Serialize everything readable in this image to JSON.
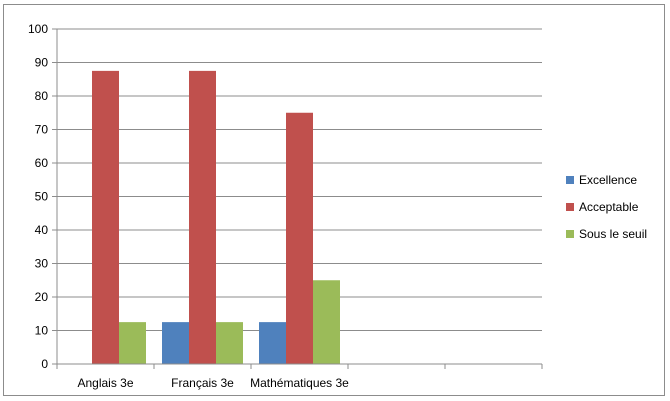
{
  "chart_data": {
    "type": "bar",
    "title": "",
    "xlabel": "",
    "ylabel": "",
    "categories": [
      "Anglais 3e",
      "Français 3e",
      "Mathématiques 3e",
      "",
      ""
    ],
    "series": [
      {
        "name": "Excellence",
        "values": [
          0,
          12.5,
          12.5,
          0,
          0
        ],
        "color": "#4F81BD"
      },
      {
        "name": "Acceptable",
        "values": [
          87.5,
          87.5,
          75,
          0,
          0
        ],
        "color": "#C0504D"
      },
      {
        "name": "Sous le seuil",
        "values": [
          12.5,
          12.5,
          25,
          0,
          0
        ],
        "color": "#9BBB59"
      }
    ],
    "ylim": [
      0,
      100
    ],
    "yticks": [
      0,
      10,
      20,
      30,
      40,
      50,
      60,
      70,
      80,
      90,
      100
    ],
    "grid": true,
    "legend": "right"
  }
}
